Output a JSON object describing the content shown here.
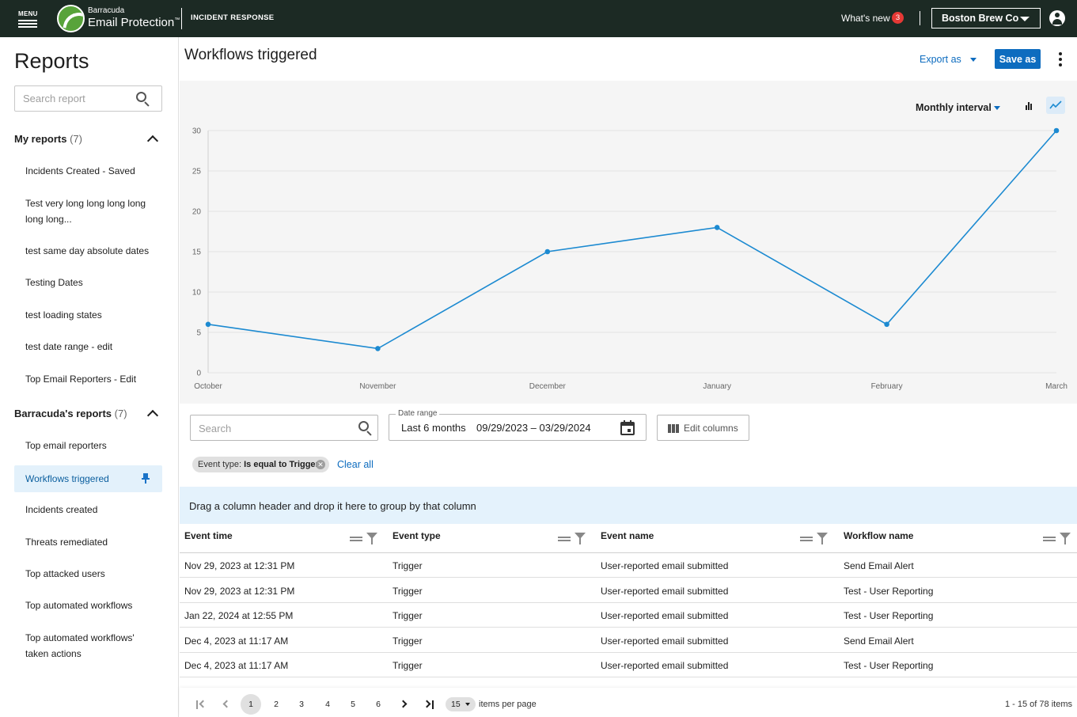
{
  "topbar": {
    "menu_label": "MENU",
    "brand_small": "Barracuda",
    "brand_main": "Email Protection",
    "trademark": "™",
    "product": "INCIDENT RESPONSE",
    "whats_new": "What's new",
    "whats_new_count": "3",
    "account": "Boston Brew Co",
    "colors": {
      "background": "#1c2a24",
      "logo_green": "#58a33a",
      "badge_red": "#e53935"
    }
  },
  "sidebar": {
    "title": "Reports",
    "search_placeholder": "Search report",
    "my_reports": {
      "label": "My reports",
      "count": "(7)",
      "items": [
        "Incidents Created - Saved",
        "Test very long long long long long long...",
        "test same day absolute dates",
        "Testing Dates",
        "test loading states",
        "test date range - edit",
        "Top Email Reporters - Edit"
      ]
    },
    "barracuda_reports": {
      "label": "Barracuda's reports",
      "count": "(7)",
      "active": "Workflows triggered",
      "items": [
        "Top email reporters",
        "Incidents created",
        "Threats remediated",
        "Top attacked users",
        "Top automated workflows",
        "Top automated workflows' taken actions"
      ]
    }
  },
  "header": {
    "title": "Workflows triggered",
    "export_label": "Export as",
    "save_label": "Save as",
    "accent": "#0d6cbf"
  },
  "chart": {
    "interval_label": "Monthly interval"
  },
  "chart_data": {
    "type": "line",
    "categories": [
      "October",
      "November",
      "December",
      "January",
      "February",
      "March"
    ],
    "series": [
      {
        "values": [
          6,
          3,
          15,
          18,
          6,
          30
        ]
      }
    ],
    "ylim": [
      0,
      30
    ],
    "yticks": [
      "0",
      "5",
      "10",
      "15",
      "20",
      "25",
      "30"
    ],
    "grid": true,
    "color": "#1c8ad1"
  },
  "controls": {
    "search_placeholder": "Search",
    "date_label": "Date range",
    "date_preset": "Last 6 months",
    "date_value": "09/29/2023 – 03/29/2024",
    "edit_columns": "Edit columns",
    "chip_prefix": "Event type: ",
    "chip_value": "Is equal to Trigger",
    "clear_all": "Clear all"
  },
  "group_bar": "Drag a column header and drop it here to group by that column",
  "table": {
    "columns": [
      "Event time",
      "Event type",
      "Event name",
      "Workflow name"
    ],
    "rows": [
      [
        "Nov 29, 2023 at 12:31 PM",
        "Trigger",
        "User-reported email submitted",
        "Send Email Alert"
      ],
      [
        "Nov 29, 2023 at 12:31 PM",
        "Trigger",
        "User-reported email submitted",
        "Test - User Reporting"
      ],
      [
        "Jan 22, 2024 at 12:55 PM",
        "Trigger",
        "User-reported email submitted",
        "Test - User Reporting"
      ],
      [
        "Dec 4, 2023 at 11:17 AM",
        "Trigger",
        "User-reported email submitted",
        "Send Email Alert"
      ],
      [
        "Dec 4, 2023 at 11:17 AM",
        "Trigger",
        "User-reported email submitted",
        "Test - User Reporting"
      ]
    ]
  },
  "pager": {
    "pages": [
      "1",
      "2",
      "3",
      "4",
      "5",
      "6"
    ],
    "current": "1",
    "per_page": "15",
    "per_page_label": "items per page",
    "range": "1 - 15 of 78 items"
  }
}
